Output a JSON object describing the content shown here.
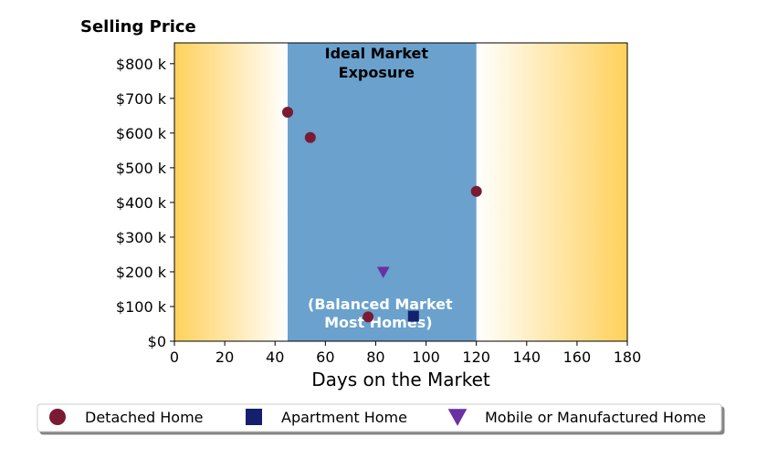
{
  "chart_data": {
    "type": "scatter",
    "title": "",
    "ylabel": "Selling Price",
    "xlabel": "Days on the Market",
    "xlim": [
      0,
      180
    ],
    "ylim": [
      0,
      860
    ],
    "x_ticks": [
      0,
      20,
      40,
      60,
      80,
      100,
      120,
      140,
      160,
      180
    ],
    "y_ticks": [
      0,
      100,
      200,
      300,
      400,
      500,
      600,
      700,
      800
    ],
    "y_tick_labels": [
      "$0",
      "$100 k",
      "$200 k",
      "$300 k",
      "$400 k",
      "$500 k",
      "$600 k",
      "$700 k",
      "$800 k"
    ],
    "grid": false,
    "background": {
      "gradient_color": "#ffd15c",
      "ideal_band": {
        "x_range": [
          45,
          120
        ],
        "color": "#6aa1cd",
        "title_lines": [
          "Ideal Market",
          "Exposure"
        ],
        "note_lines": [
          "(Balanced Market",
          "Most Homes)"
        ]
      }
    },
    "series": [
      {
        "name": "Detached Home",
        "marker": "circle",
        "color": "#7a1a33",
        "points": [
          {
            "x": 45,
            "y": 660
          },
          {
            "x": 54,
            "y": 587
          },
          {
            "x": 120,
            "y": 432
          },
          {
            "x": 77,
            "y": 70
          }
        ]
      },
      {
        "name": "Apartment Home",
        "marker": "square",
        "color": "#14206e",
        "points": [
          {
            "x": 95,
            "y": 72
          }
        ]
      },
      {
        "name": "Mobile or Manufactured Home",
        "marker": "triangle-down",
        "color": "#6b30a1",
        "points": [
          {
            "x": 83,
            "y": 199
          }
        ]
      }
    ],
    "legend": {
      "placement": "bottom-center"
    }
  }
}
